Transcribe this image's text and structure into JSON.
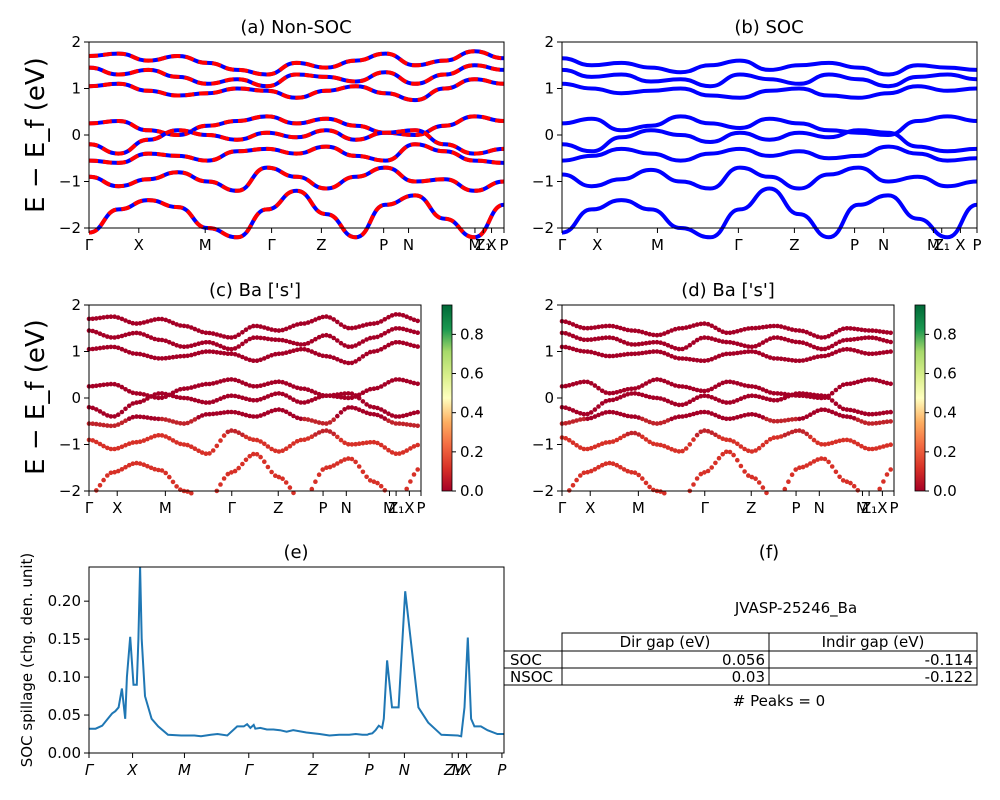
{
  "panels": {
    "a": {
      "title": "(a) Non-SOC"
    },
    "b": {
      "title": "(b) SOC"
    },
    "c": {
      "title": "(c)  Ba ['s']"
    },
    "d": {
      "title": "(d) Ba ['s']"
    },
    "e": {
      "title": "(e)"
    },
    "f": {
      "title": "(f)"
    }
  },
  "band_ylabel": "E − E_f (eV)",
  "kpath_labels": [
    "Γ",
    "X",
    "M",
    "Γ",
    "Z",
    "P",
    "N",
    "M",
    "Z₁",
    "X",
    "P"
  ],
  "spillage_kpath_labels": [
    "Γ",
    "X",
    "M",
    "Γ",
    "Z",
    "P",
    "N",
    "Z₁",
    "M",
    "X",
    "P"
  ],
  "spillage_ylabel": "SOC spillage (chg. den. unit)",
  "colorbar": {
    "ticks": [
      "0.0",
      "0.2",
      "0.4",
      "0.6",
      "0.8"
    ],
    "colormap": "RdYlGn"
  },
  "colors": {
    "non_soc_up": "#ff0000",
    "non_soc_dn": "#0000ff",
    "soc": "#0000ff",
    "spillage": "#1f77b4"
  },
  "info_table": {
    "material": "JVASP-25246_Ba",
    "headers": [
      "Dir gap (eV)",
      "Indir gap (eV)"
    ],
    "rows": [
      {
        "label": "SOC",
        "dir": "0.056",
        "indir": "-0.114"
      },
      {
        "label": "NSOC",
        "dir": "0.03",
        "indir": "-0.122"
      }
    ],
    "peaks": "# Peaks = 0"
  },
  "chart_data": [
    {
      "type": "line",
      "title": "(a) Non-SOC",
      "ylabel": "E − E_f (eV)",
      "ylim": [
        -2,
        2
      ],
      "yticks": [
        -2,
        -1,
        0,
        1,
        2
      ],
      "x_tick_positions": [
        0,
        0.12,
        0.28,
        0.44,
        0.56,
        0.71,
        0.77,
        0.93,
        0.95,
        0.97,
        1.0
      ],
      "x_tick_labels": [
        "Γ",
        "X",
        "M",
        "Γ",
        "Z",
        "P",
        "N",
        "M",
        "Z₁",
        "X",
        "P"
      ],
      "series": [
        {
          "values": [
            1.7,
            1.75,
            1.6,
            1.7,
            1.55,
            1.4,
            1.3,
            1.55,
            1.45,
            1.6,
            1.75,
            1.5,
            1.6,
            1.8,
            1.65
          ]
        },
        {
          "values": [
            1.45,
            1.3,
            1.4,
            1.25,
            1.1,
            1.2,
            1.05,
            1.3,
            1.25,
            1.15,
            1.35,
            1.1,
            1.3,
            1.5,
            1.4
          ]
        },
        {
          "values": [
            1.05,
            1.1,
            0.95,
            0.85,
            0.9,
            1.0,
            0.95,
            0.8,
            0.95,
            1.05,
            0.9,
            0.75,
            1.0,
            1.2,
            1.1
          ]
        },
        {
          "values": [
            0.25,
            0.3,
            0.1,
            0.0,
            0.2,
            0.3,
            0.4,
            0.25,
            0.35,
            0.2,
            0.05,
            0.0,
            0.2,
            0.4,
            0.3
          ]
        },
        {
          "values": [
            -0.2,
            -0.4,
            -0.1,
            0.1,
            0.0,
            -0.1,
            0.05,
            -0.05,
            0.1,
            -0.1,
            0.05,
            0.1,
            -0.2,
            -0.4,
            -0.3
          ]
        },
        {
          "values": [
            -0.55,
            -0.6,
            -0.4,
            -0.45,
            -0.55,
            -0.35,
            -0.3,
            -0.4,
            -0.25,
            -0.45,
            -0.55,
            -0.2,
            -0.35,
            -0.55,
            -0.6
          ]
        },
        {
          "values": [
            -0.9,
            -1.1,
            -0.95,
            -0.8,
            -1.0,
            -1.2,
            -0.7,
            -0.9,
            -1.15,
            -0.9,
            -0.7,
            -1.0,
            -0.95,
            -1.2,
            -1.0
          ]
        },
        {
          "values": [
            -2.1,
            -1.6,
            -1.4,
            -1.55,
            -2.0,
            -2.2,
            -1.6,
            -1.2,
            -1.7,
            -2.2,
            -1.5,
            -1.3,
            -1.8,
            -2.2,
            -1.5
          ]
        }
      ]
    },
    {
      "type": "line",
      "title": "(b) SOC",
      "ylabel": "",
      "ylim": [
        -2,
        2
      ],
      "yticks": [
        -2,
        -1,
        0,
        1,
        2
      ],
      "x_tick_positions": [
        0,
        0.085,
        0.23,
        0.425,
        0.56,
        0.705,
        0.775,
        0.895,
        0.915,
        0.96,
        1.0
      ],
      "x_tick_labels": [
        "Γ",
        "X",
        "M",
        "Γ",
        "Z",
        "P",
        "N",
        "M",
        "Z₁",
        "X",
        "P"
      ],
      "series": [
        {
          "values": [
            1.65,
            1.5,
            1.55,
            1.45,
            1.35,
            1.5,
            1.6,
            1.4,
            1.5,
            1.55,
            1.45,
            1.3,
            1.5,
            1.45,
            1.4
          ]
        },
        {
          "values": [
            1.4,
            1.25,
            1.3,
            1.15,
            1.2,
            1.05,
            1.3,
            1.2,
            1.1,
            1.3,
            1.2,
            1.05,
            1.25,
            1.3,
            1.2
          ]
        },
        {
          "values": [
            1.1,
            1.0,
            0.9,
            0.95,
            1.0,
            0.85,
            0.8,
            0.95,
            1.0,
            0.85,
            0.8,
            0.9,
            1.05,
            0.95,
            1.0
          ]
        },
        {
          "values": [
            0.25,
            0.35,
            0.1,
            0.2,
            0.4,
            0.25,
            0.15,
            0.35,
            0.25,
            0.1,
            0.05,
            0.0,
            0.3,
            0.4,
            0.3
          ]
        },
        {
          "values": [
            -0.2,
            -0.35,
            -0.05,
            0.1,
            0.0,
            -0.15,
            0.05,
            -0.1,
            0.05,
            -0.05,
            0.1,
            0.05,
            -0.25,
            -0.35,
            -0.3
          ]
        },
        {
          "values": [
            -0.55,
            -0.45,
            -0.3,
            -0.4,
            -0.55,
            -0.4,
            -0.3,
            -0.45,
            -0.35,
            -0.5,
            -0.45,
            -0.25,
            -0.4,
            -0.55,
            -0.5
          ]
        },
        {
          "values": [
            -0.85,
            -1.1,
            -0.95,
            -0.75,
            -1.0,
            -1.15,
            -0.7,
            -0.9,
            -1.15,
            -0.85,
            -0.7,
            -1.0,
            -0.9,
            -1.1,
            -1.0
          ]
        },
        {
          "values": [
            -2.1,
            -1.6,
            -1.4,
            -1.6,
            -2.0,
            -2.2,
            -1.6,
            -1.15,
            -1.7,
            -2.2,
            -1.5,
            -1.3,
            -1.8,
            -2.2,
            -1.5
          ]
        }
      ]
    },
    {
      "type": "scatter",
      "title": "(c)  Ba ['s']",
      "ylabel": "E − E_f (eV)",
      "ylim": [
        -2,
        2
      ],
      "colorbar_range": [
        0.0,
        0.95
      ],
      "x_tick_labels": [
        "Γ",
        "X",
        "M",
        "Γ",
        "Z",
        "P",
        "N",
        "M",
        "Z₁",
        "X",
        "P"
      ],
      "note": "points follow the Non-SOC bands, colored by Ba s-projection (~0.0–0.2)"
    },
    {
      "type": "scatter",
      "title": "(d) Ba ['s']",
      "ylabel": "",
      "ylim": [
        -2,
        2
      ],
      "colorbar_range": [
        0.0,
        0.95
      ],
      "x_tick_labels": [
        "Γ",
        "X",
        "M",
        "Γ",
        "Z",
        "P",
        "N",
        "M",
        "Z₁",
        "X",
        "P"
      ],
      "note": "points follow the SOC bands, colored by Ba s-projection (~0.0–0.2)"
    },
    {
      "type": "line",
      "title": "(e)",
      "ylabel": "SOC spillage (chg. den. unit)",
      "ylim": [
        0,
        0.245
      ],
      "yticks": [
        0.0,
        0.05,
        0.1,
        0.15,
        0.2
      ],
      "x_tick_labels": [
        "Γ",
        "X",
        "M",
        "Γ",
        "Z",
        "P",
        "N",
        "Z₁",
        "M",
        "X",
        "P"
      ],
      "x": [
        0.0,
        0.02,
        0.04,
        0.055,
        0.07,
        0.08,
        0.09,
        0.1,
        0.11,
        0.115,
        0.125,
        0.135,
        0.145,
        0.15,
        0.155,
        0.16,
        0.17,
        0.19,
        0.21,
        0.24,
        0.28,
        0.32,
        0.34,
        0.37,
        0.39,
        0.42,
        0.45,
        0.47,
        0.48,
        0.49,
        0.5,
        0.505,
        0.52,
        0.54,
        0.56,
        0.58,
        0.6,
        0.62,
        0.66,
        0.7,
        0.73,
        0.76,
        0.79,
        0.81,
        0.83,
        0.845,
        0.85,
        0.86,
        0.87,
        0.88,
        0.89,
        0.895,
        0.905,
        0.92,
        0.94,
        0.96,
        1.0,
        1.03,
        1.07,
        1.12,
        1.13,
        1.14,
        1.15,
        1.16,
        1.17,
        1.19,
        1.21,
        1.24,
        1.26
      ],
      "y": [
        0.032,
        0.032,
        0.036,
        0.044,
        0.052,
        0.055,
        0.06,
        0.085,
        0.045,
        0.1,
        0.153,
        0.09,
        0.09,
        0.15,
        0.245,
        0.15,
        0.075,
        0.045,
        0.035,
        0.024,
        0.023,
        0.023,
        0.022,
        0.024,
        0.025,
        0.023,
        0.035,
        0.035,
        0.038,
        0.033,
        0.037,
        0.032,
        0.033,
        0.031,
        0.031,
        0.03,
        0.028,
        0.03,
        0.027,
        0.025,
        0.023,
        0.024,
        0.024,
        0.025,
        0.024,
        0.024,
        0.025,
        0.026,
        0.03,
        0.036,
        0.033,
        0.045,
        0.122,
        0.06,
        0.06,
        0.213,
        0.06,
        0.04,
        0.024,
        0.023,
        0.022,
        0.06,
        0.152,
        0.045,
        0.035,
        0.035,
        0.03,
        0.025,
        0.025
      ]
    }
  ]
}
